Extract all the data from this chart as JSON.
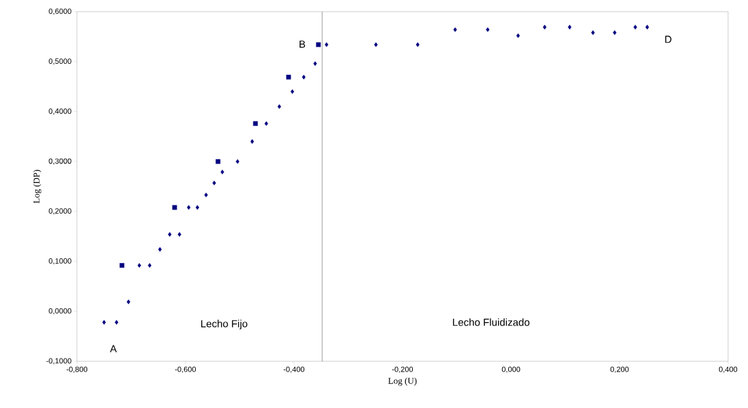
{
  "chart_data": {
    "type": "scatter",
    "xlabel": "Log (U)",
    "ylabel": "Log (DP)",
    "xlim": [
      -0.8,
      0.4
    ],
    "ylim": [
      -0.1,
      0.6
    ],
    "xticks": [
      {
        "value": -0.8,
        "label": "-0,800"
      },
      {
        "value": -0.6,
        "label": "-0,600"
      },
      {
        "value": -0.4,
        "label": "-0,400"
      },
      {
        "value": -0.2,
        "label": "-0,200"
      },
      {
        "value": 0,
        "label": "0,000"
      },
      {
        "value": 0.2,
        "label": "0,200"
      },
      {
        "value": 0.4,
        "label": "0,400"
      }
    ],
    "yticks": [
      {
        "value": -0.1,
        "label": "-0,1000"
      },
      {
        "value": 0,
        "label": "0,0000"
      },
      {
        "value": 0.1,
        "label": "0,1000"
      },
      {
        "value": 0.2,
        "label": "0,2000"
      },
      {
        "value": 0.3,
        "label": "0,3000"
      },
      {
        "value": 0.4,
        "label": "0,4000"
      },
      {
        "value": 0.5,
        "label": "0,5000"
      },
      {
        "value": 0.6,
        "label": "0,6000"
      }
    ],
    "grid": false,
    "series": [
      {
        "color": "#000080",
        "marker": "diamond",
        "x": [
          -0.75,
          -0.727,
          -0.705,
          -0.685,
          -0.666,
          -0.647,
          -0.629,
          -0.611,
          -0.594,
          -0.578,
          -0.562,
          -0.547,
          -0.532,
          -0.504,
          -0.477,
          -0.451,
          -0.427,
          -0.403,
          -0.382,
          -0.361,
          -0.34,
          -0.249,
          -0.172,
          -0.103,
          -0.043,
          0.013,
          0.062,
          0.108,
          0.151,
          0.191,
          0.229,
          0.251
        ],
        "values": [
          -0.022,
          -0.022,
          0.019,
          0.092,
          0.092,
          0.124,
          0.154,
          0.154,
          0.208,
          0.208,
          0.233,
          0.257,
          0.279,
          0.3,
          0.34,
          0.376,
          0.41,
          0.44,
          0.469,
          0.496,
          0.534,
          0.534,
          0.534,
          0.564,
          0.564,
          0.552,
          0.569,
          0.569,
          0.558,
          0.558,
          0.569,
          0.569
        ]
      },
      {
        "color": "#000080",
        "marker": "square",
        "x": [
          -0.717,
          -0.62,
          -0.54,
          -0.471,
          -0.41,
          -0.355
        ],
        "values": [
          0.092,
          0.208,
          0.3,
          0.376,
          0.469,
          0.534
        ]
      }
    ],
    "ref_lines": [
      {
        "axis": "x",
        "value": -0.348,
        "color": "#000000",
        "line_style": "solid"
      }
    ],
    "annotations": [
      "A",
      "B",
      "D",
      "Lecho Fijo",
      "Lecho Fluidizado"
    ]
  }
}
